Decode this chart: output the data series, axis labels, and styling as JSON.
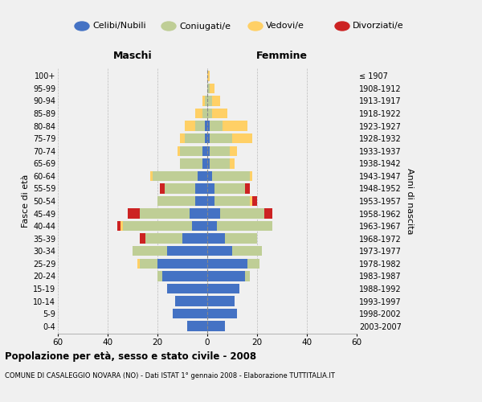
{
  "age_groups": [
    "0-4",
    "5-9",
    "10-14",
    "15-19",
    "20-24",
    "25-29",
    "30-34",
    "35-39",
    "40-44",
    "45-49",
    "50-54",
    "55-59",
    "60-64",
    "65-69",
    "70-74",
    "75-79",
    "80-84",
    "85-89",
    "90-94",
    "95-99",
    "100+"
  ],
  "birth_years": [
    "2003-2007",
    "1998-2002",
    "1993-1997",
    "1988-1992",
    "1983-1987",
    "1978-1982",
    "1973-1977",
    "1968-1972",
    "1963-1967",
    "1958-1962",
    "1953-1957",
    "1948-1952",
    "1943-1947",
    "1938-1942",
    "1933-1937",
    "1928-1932",
    "1923-1927",
    "1918-1922",
    "1913-1917",
    "1908-1912",
    "≤ 1907"
  ],
  "males": {
    "celibi": [
      8,
      14,
      13,
      16,
      18,
      20,
      16,
      10,
      6,
      7,
      5,
      5,
      4,
      2,
      2,
      1,
      1,
      0,
      0,
      0,
      0
    ],
    "coniugati": [
      0,
      0,
      0,
      0,
      2,
      7,
      14,
      15,
      28,
      20,
      15,
      12,
      18,
      9,
      9,
      8,
      4,
      2,
      1,
      0,
      0
    ],
    "vedovi": [
      0,
      0,
      0,
      0,
      0,
      1,
      0,
      0,
      1,
      0,
      0,
      0,
      1,
      0,
      1,
      2,
      4,
      3,
      1,
      0,
      0
    ],
    "divorziati": [
      0,
      0,
      0,
      0,
      0,
      0,
      0,
      2,
      1,
      5,
      0,
      2,
      0,
      0,
      0,
      0,
      0,
      0,
      0,
      0,
      0
    ]
  },
  "females": {
    "nubili": [
      7,
      12,
      11,
      13,
      15,
      16,
      10,
      7,
      4,
      5,
      3,
      3,
      2,
      1,
      1,
      1,
      1,
      0,
      0,
      0,
      0
    ],
    "coniugate": [
      0,
      0,
      0,
      0,
      2,
      5,
      12,
      13,
      22,
      18,
      14,
      12,
      15,
      8,
      8,
      9,
      5,
      2,
      2,
      1,
      0
    ],
    "vedove": [
      0,
      0,
      0,
      0,
      0,
      0,
      0,
      0,
      0,
      0,
      1,
      0,
      1,
      2,
      3,
      8,
      10,
      6,
      3,
      2,
      1
    ],
    "divorziate": [
      0,
      0,
      0,
      0,
      0,
      0,
      0,
      0,
      0,
      3,
      2,
      2,
      0,
      0,
      0,
      0,
      0,
      0,
      0,
      0,
      0
    ]
  },
  "colors": {
    "celibi_nubili": "#4472C4",
    "coniugati": "#BFCE96",
    "vedovi": "#FFD066",
    "divorziati": "#CC2222"
  },
  "title": "Popolazione per età, sesso e stato civile - 2008",
  "subtitle": "COMUNE DI CASALEGGIO NOVARA (NO) - Dati ISTAT 1° gennaio 2008 - Elaborazione TUTTITALIA.IT",
  "xlabel_left": "Maschi",
  "xlabel_right": "Femmine",
  "ylabel": "Fasce di età",
  "ylabel_right": "Anni di nascita",
  "xlim": 60,
  "background_color": "#f0f0f0"
}
